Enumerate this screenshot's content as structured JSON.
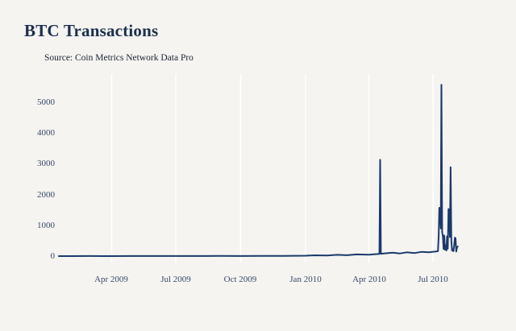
{
  "chart": {
    "title": "BTC Transactions",
    "subtitle": "Source: Coin Metrics Network Data Pro"
  },
  "colors": {
    "background": "#f5f4f1",
    "line": "#1b3a6b",
    "title": "#1c2f4e",
    "tick_label": "#3a4a66",
    "gridline": "#ffffff"
  },
  "chart_data": {
    "type": "line",
    "title": "BTC Transactions",
    "subtitle": "Source: Coin Metrics Network Data Pro",
    "xlabel": "",
    "ylabel": "",
    "x_type": "date",
    "x_domain": [
      "2009-01-15",
      "2010-09-11"
    ],
    "ylim": [
      0,
      5837
    ],
    "y_ticks": [
      0,
      1000,
      2000,
      3000,
      4000,
      5000
    ],
    "x_ticks": [
      {
        "date": "2009-04-01",
        "label": "Apr 2009"
      },
      {
        "date": "2009-07-01",
        "label": "Jul 2009"
      },
      {
        "date": "2009-10-01",
        "label": "Oct 2009"
      },
      {
        "date": "2010-01-01",
        "label": "Jan 2010"
      },
      {
        "date": "2010-04-01",
        "label": "Apr 2010"
      },
      {
        "date": "2010-07-01",
        "label": "Jul 2010"
      }
    ],
    "grid": "vertical-only",
    "legend": "none",
    "series": [
      {
        "name": "BTC Transactions",
        "points": [
          [
            "2009-01-16",
            0
          ],
          [
            "2009-02-01",
            1
          ],
          [
            "2009-03-01",
            2
          ],
          [
            "2009-04-01",
            1
          ],
          [
            "2009-05-01",
            2
          ],
          [
            "2009-06-01",
            3
          ],
          [
            "2009-07-01",
            2
          ],
          [
            "2009-08-01",
            3
          ],
          [
            "2009-09-01",
            4
          ],
          [
            "2009-10-01",
            3
          ],
          [
            "2009-11-01",
            5
          ],
          [
            "2009-12-01",
            6
          ],
          [
            "2010-01-01",
            12
          ],
          [
            "2010-01-15",
            25
          ],
          [
            "2010-02-01",
            18
          ],
          [
            "2010-02-15",
            42
          ],
          [
            "2010-03-01",
            30
          ],
          [
            "2010-03-15",
            55
          ],
          [
            "2010-04-01",
            45
          ],
          [
            "2010-04-10",
            62
          ],
          [
            "2010-04-16",
            70
          ],
          [
            "2010-04-17",
            3130
          ],
          [
            "2010-04-18",
            75
          ],
          [
            "2010-04-25",
            92
          ],
          [
            "2010-05-05",
            112
          ],
          [
            "2010-05-15",
            86
          ],
          [
            "2010-05-25",
            122
          ],
          [
            "2010-06-05",
            100
          ],
          [
            "2010-06-15",
            140
          ],
          [
            "2010-06-25",
            125
          ],
          [
            "2010-07-05",
            150
          ],
          [
            "2010-07-08",
            160
          ],
          [
            "2010-07-09",
            650
          ],
          [
            "2010-07-10",
            1570
          ],
          [
            "2010-07-11",
            1530
          ],
          [
            "2010-07-12",
            900
          ],
          [
            "2010-07-13",
            5570
          ],
          [
            "2010-07-14",
            780
          ],
          [
            "2010-07-15",
            640
          ],
          [
            "2010-07-16",
            230
          ],
          [
            "2010-07-17",
            670
          ],
          [
            "2010-07-18",
            210
          ],
          [
            "2010-07-19",
            350
          ],
          [
            "2010-07-20",
            180
          ],
          [
            "2010-07-21",
            640
          ],
          [
            "2010-07-22",
            240
          ],
          [
            "2010-07-23",
            1530
          ],
          [
            "2010-07-24",
            1490
          ],
          [
            "2010-07-25",
            620
          ],
          [
            "2010-07-26",
            2890
          ],
          [
            "2010-07-27",
            500
          ],
          [
            "2010-07-28",
            180
          ],
          [
            "2010-07-29",
            220
          ],
          [
            "2010-07-30",
            160
          ],
          [
            "2010-07-31",
            340
          ],
          [
            "2010-08-01",
            600
          ],
          [
            "2010-08-02",
            580
          ],
          [
            "2010-08-03",
            150
          ],
          [
            "2010-08-04",
            290
          ],
          [
            "2010-08-05",
            310
          ]
        ]
      }
    ]
  }
}
